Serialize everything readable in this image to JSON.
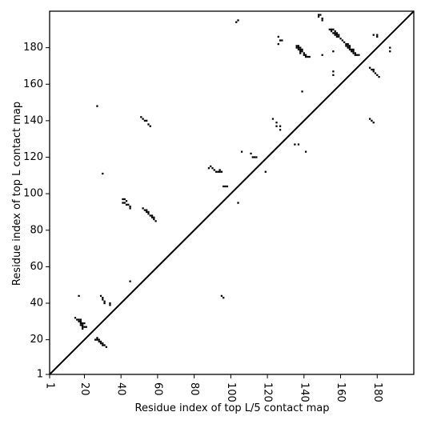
{
  "chart_data": {
    "type": "heatmap",
    "title": "",
    "xlabel": "Residue index of top L/5 contact map",
    "ylabel": "Residue index of top L contact map",
    "xlim": [
      1,
      200
    ],
    "ylim": [
      1,
      200
    ],
    "x_ticks": [
      1,
      20,
      40,
      60,
      80,
      100,
      120,
      140,
      160,
      180
    ],
    "y_ticks": [
      1,
      20,
      40,
      60,
      80,
      100,
      120,
      140,
      160,
      180
    ],
    "x_tick_labels": [
      "1",
      "20",
      "40",
      "60",
      "80",
      "100",
      "120",
      "140",
      "160",
      "180"
    ],
    "y_tick_labels": [
      "1",
      "20",
      "40",
      "60",
      "80",
      "100",
      "120",
      "140",
      "160",
      "180"
    ],
    "grid": false,
    "diagonal": true,
    "cell_color": "#000000",
    "upper_triangle_contacts": [
      [
        148,
        198
      ],
      [
        149,
        198
      ],
      [
        148,
        197
      ],
      [
        150,
        196
      ],
      [
        150,
        195
      ],
      [
        103,
        194
      ],
      [
        104,
        195
      ],
      [
        126,
        186
      ],
      [
        127,
        184
      ],
      [
        128,
        184
      ],
      [
        126,
        182
      ],
      [
        178,
        187
      ],
      [
        180,
        187
      ],
      [
        180,
        186
      ],
      [
        187,
        180
      ],
      [
        187,
        178
      ],
      [
        154,
        190
      ],
      [
        155,
        190
      ],
      [
        156,
        190
      ],
      [
        157,
        189
      ],
      [
        155,
        189
      ],
      [
        156,
        188
      ],
      [
        157,
        188
      ],
      [
        158,
        188
      ],
      [
        157,
        187
      ],
      [
        158,
        187
      ],
      [
        159,
        187
      ],
      [
        158,
        186
      ],
      [
        159,
        186
      ],
      [
        160,
        185
      ],
      [
        161,
        184
      ],
      [
        162,
        183
      ],
      [
        163,
        182
      ],
      [
        164,
        182
      ],
      [
        163,
        181
      ],
      [
        164,
        181
      ],
      [
        165,
        181
      ],
      [
        164,
        180
      ],
      [
        165,
        180
      ],
      [
        165,
        179
      ],
      [
        166,
        179
      ],
      [
        167,
        179
      ],
      [
        166,
        178
      ],
      [
        167,
        178
      ],
      [
        167,
        177
      ],
      [
        168,
        177
      ],
      [
        168,
        176
      ],
      [
        169,
        176
      ],
      [
        170,
        176
      ],
      [
        156,
        178
      ],
      [
        150,
        176
      ],
      [
        136,
        181
      ],
      [
        137,
        181
      ],
      [
        136,
        180
      ],
      [
        137,
        180
      ],
      [
        138,
        180
      ],
      [
        137,
        179
      ],
      [
        138,
        179
      ],
      [
        139,
        179
      ],
      [
        138,
        178
      ],
      [
        139,
        178
      ],
      [
        138,
        177
      ],
      [
        140,
        177
      ],
      [
        140,
        176
      ],
      [
        141,
        176
      ],
      [
        141,
        175
      ],
      [
        142,
        175
      ],
      [
        143,
        175
      ],
      [
        139,
        156
      ],
      [
        156,
        167
      ],
      [
        156,
        165
      ],
      [
        176,
        169
      ],
      [
        177,
        168
      ],
      [
        178,
        168
      ],
      [
        178,
        167
      ],
      [
        179,
        166
      ],
      [
        180,
        165
      ],
      [
        181,
        164
      ],
      [
        176,
        141
      ],
      [
        177,
        140
      ],
      [
        178,
        139
      ],
      [
        123,
        141
      ],
      [
        125,
        139
      ],
      [
        125,
        137
      ],
      [
        127,
        137
      ],
      [
        127,
        135
      ],
      [
        135,
        127
      ],
      [
        137,
        127
      ],
      [
        141,
        123
      ],
      [
        106,
        123
      ],
      [
        111,
        122
      ],
      [
        112,
        120
      ],
      [
        113,
        120
      ],
      [
        114,
        120
      ],
      [
        119,
        112
      ],
      [
        104,
        95
      ]
    ],
    "lower_triangle_contacts": [
      [
        27,
        148
      ],
      [
        30,
        111
      ],
      [
        51,
        142
      ],
      [
        52,
        141
      ],
      [
        53,
        140
      ],
      [
        54,
        140
      ],
      [
        55,
        138
      ],
      [
        56,
        137
      ],
      [
        88,
        114
      ],
      [
        89,
        115
      ],
      [
        90,
        114
      ],
      [
        91,
        113
      ],
      [
        92,
        112
      ],
      [
        93,
        112
      ],
      [
        94,
        113
      ],
      [
        94,
        112
      ],
      [
        95,
        112
      ],
      [
        96,
        104
      ],
      [
        97,
        104
      ],
      [
        98,
        104
      ],
      [
        41,
        97
      ],
      [
        42,
        97
      ],
      [
        43,
        96
      ],
      [
        41,
        95
      ],
      [
        42,
        95
      ],
      [
        43,
        94
      ],
      [
        44,
        94
      ],
      [
        45,
        93
      ],
      [
        45,
        92
      ],
      [
        52,
        92
      ],
      [
        53,
        91
      ],
      [
        54,
        91
      ],
      [
        54,
        90
      ],
      [
        55,
        90
      ],
      [
        55,
        89
      ],
      [
        56,
        88
      ],
      [
        57,
        88
      ],
      [
        57,
        87
      ],
      [
        58,
        87
      ],
      [
        58,
        86
      ],
      [
        59,
        85
      ],
      [
        45,
        52
      ],
      [
        17,
        44
      ],
      [
        95,
        44
      ],
      [
        96,
        43
      ],
      [
        29,
        44
      ],
      [
        30,
        43
      ],
      [
        30,
        42
      ],
      [
        31,
        41
      ],
      [
        31,
        40
      ],
      [
        34,
        40
      ],
      [
        34,
        39
      ],
      [
        15,
        32
      ],
      [
        16,
        31
      ],
      [
        17,
        31
      ],
      [
        18,
        31
      ],
      [
        17,
        30
      ],
      [
        18,
        30
      ],
      [
        18,
        29
      ],
      [
        19,
        29
      ],
      [
        20,
        29
      ],
      [
        18,
        28
      ],
      [
        19,
        28
      ],
      [
        19,
        27
      ],
      [
        20,
        27
      ],
      [
        19,
        26
      ],
      [
        21,
        27
      ],
      [
        27,
        21
      ],
      [
        26,
        20
      ],
      [
        27,
        20
      ],
      [
        28,
        20
      ],
      [
        29,
        19
      ],
      [
        28,
        19
      ],
      [
        29,
        18
      ],
      [
        30,
        18
      ],
      [
        30,
        17
      ],
      [
        31,
        17
      ],
      [
        32,
        16
      ]
    ]
  }
}
